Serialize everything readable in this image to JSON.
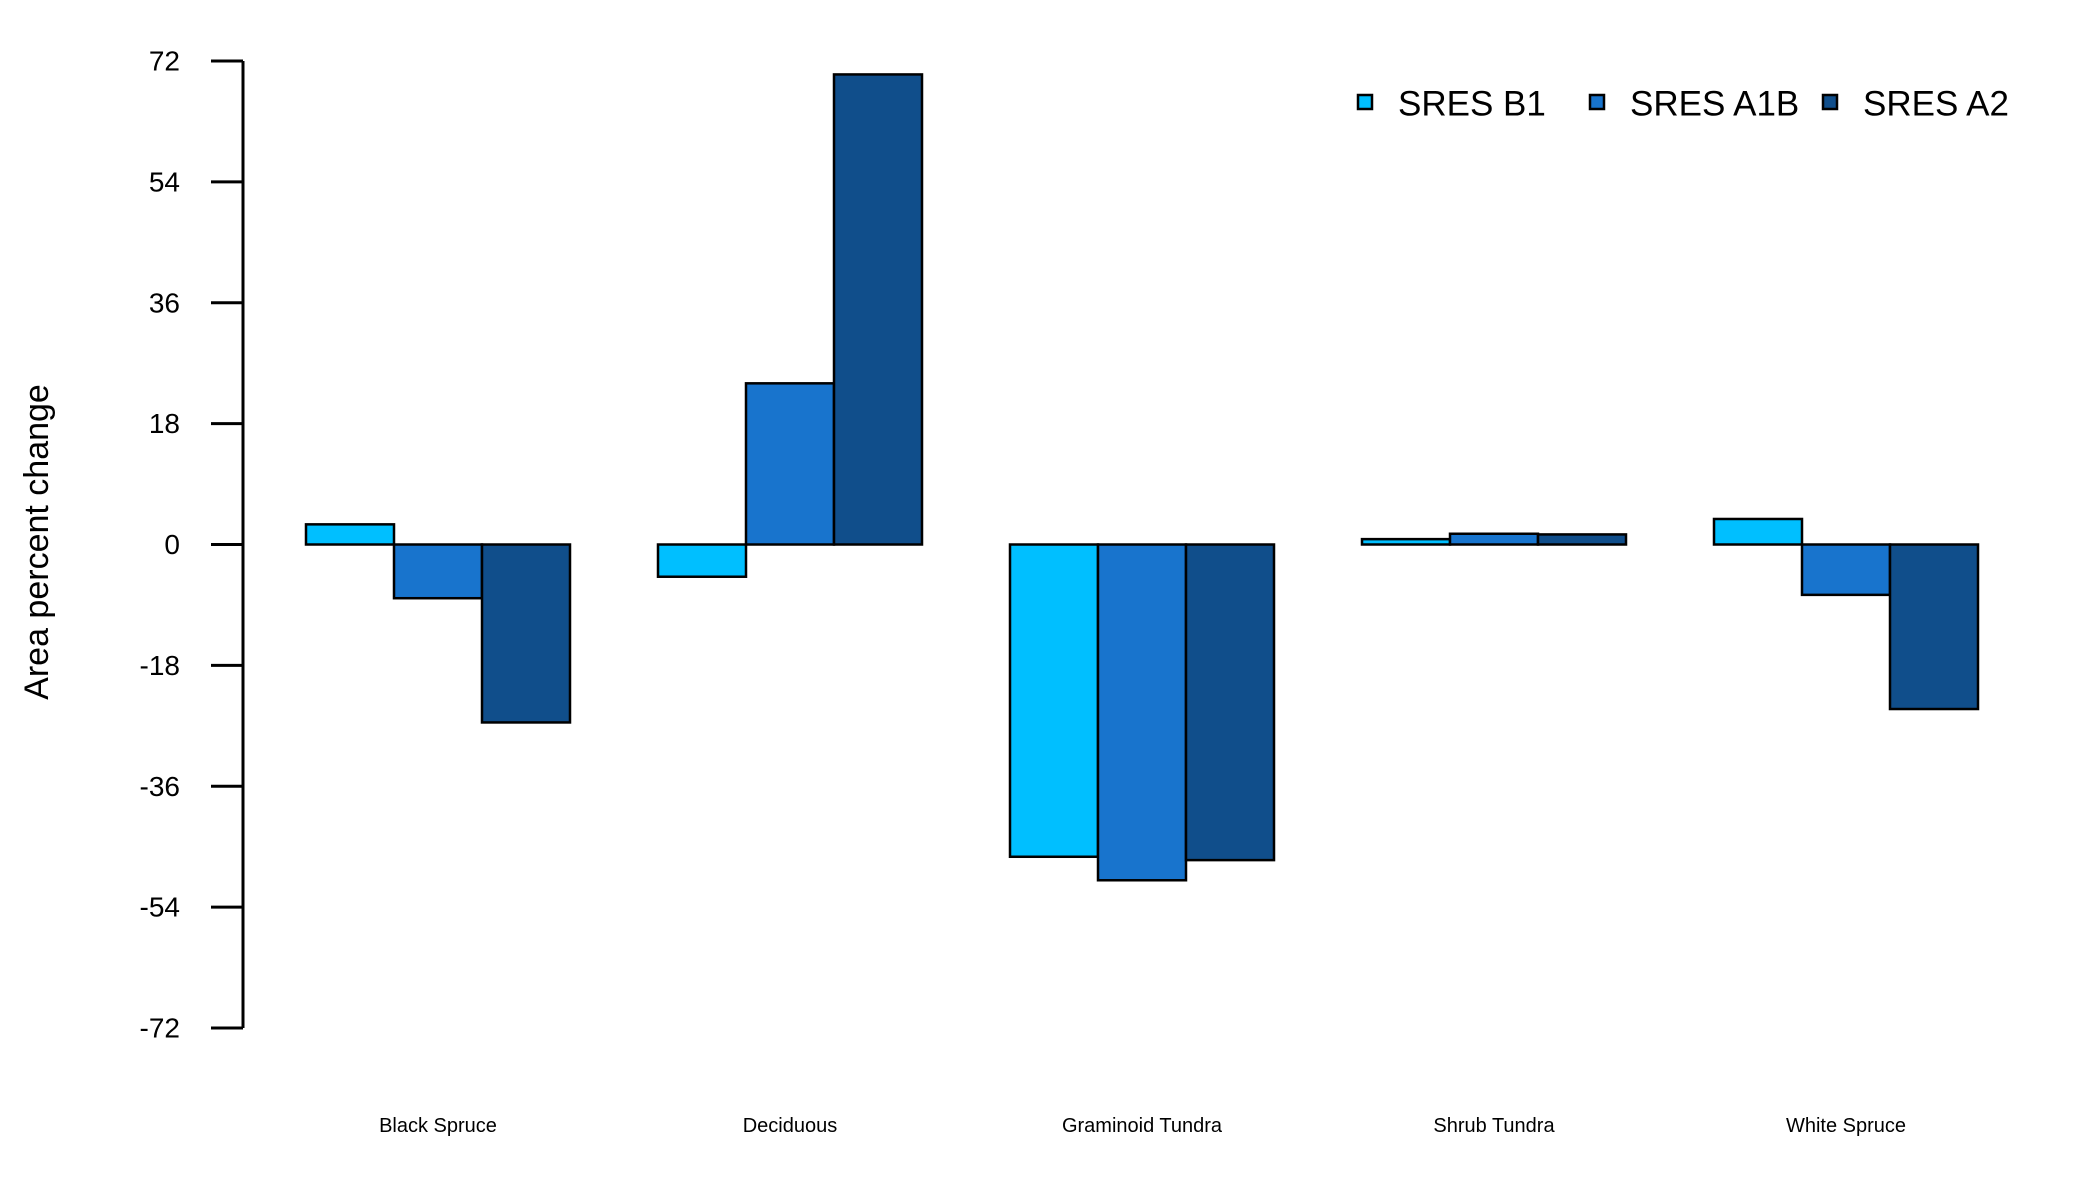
{
  "chart_data": {
    "type": "bar",
    "ylabel": "Area percent change",
    "xlabel": "",
    "ylim": [
      -72,
      72
    ],
    "yticks": [
      72,
      54,
      36,
      18,
      0,
      -18,
      -36,
      -54,
      -72
    ],
    "categories": [
      "Black Spruce",
      "Deciduous",
      "Graminoid Tundra",
      "Shrub Tundra",
      "White Spruce"
    ],
    "series": [
      {
        "name": "SRES B1",
        "color": "#00BFFF",
        "values": [
          3,
          -4.8,
          -46.5,
          0.8,
          3.8
        ]
      },
      {
        "name": "SRES A1B",
        "color": "#1874CD",
        "values": [
          -8,
          24,
          -50,
          1.6,
          -7.5
        ]
      },
      {
        "name": "SRES A2",
        "color": "#104E8B",
        "values": [
          -26.5,
          70,
          -47,
          1.5,
          -24.5
        ]
      }
    ],
    "legend_position": "top-right",
    "grid": false
  }
}
